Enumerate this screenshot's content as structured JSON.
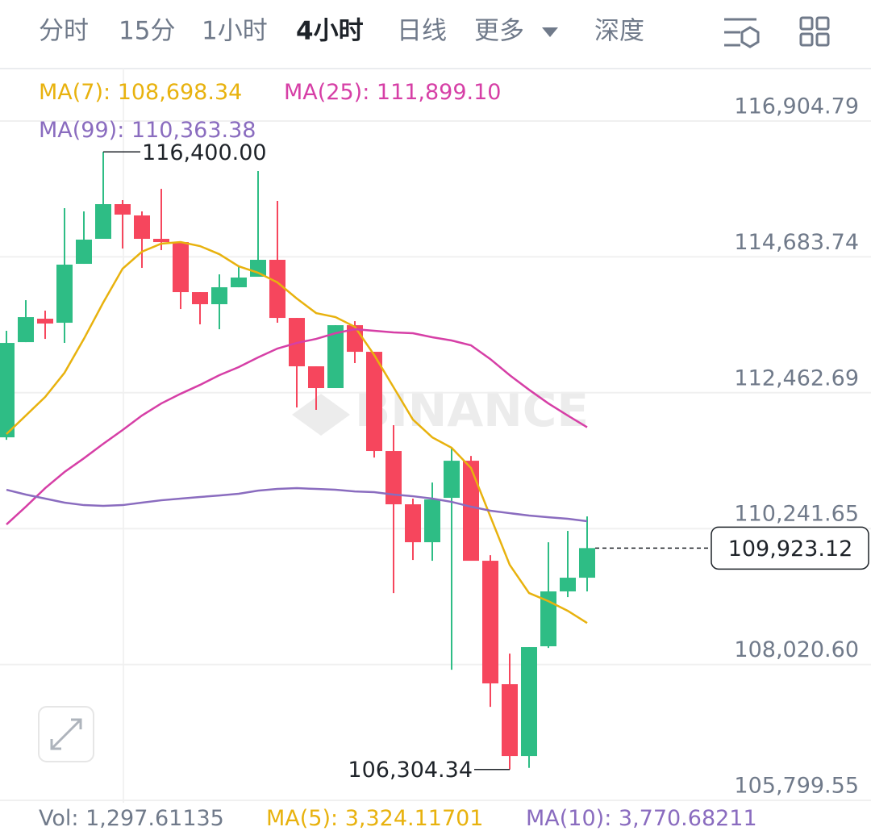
{
  "tabs": {
    "items": [
      "分时",
      "15分",
      "1小时",
      "4小时",
      "日线",
      "更多",
      "深度"
    ],
    "active": 3
  },
  "chart_data": {
    "type": "candlestick",
    "categories": [
      null,
      null,
      null,
      null,
      null,
      null,
      null,
      null,
      null,
      null,
      null,
      null,
      null,
      null,
      null,
      null,
      null,
      null,
      null,
      null,
      null,
      null,
      null,
      null,
      null,
      null,
      null,
      null,
      null,
      null,
      null
    ],
    "open": [
      111734,
      113290,
      113673,
      113607,
      114570,
      114979,
      115546,
      115361,
      114979,
      114926,
      114108,
      113910,
      114187,
      114359,
      114636,
      113686,
      112895,
      112539,
      113567,
      113132,
      111510,
      110639,
      110019,
      110745,
      111351,
      109716,
      107698,
      106524,
      108318,
      109215,
      109439
    ],
    "high": [
      113475,
      113976,
      113805,
      115480,
      115427,
      116400,
      115612,
      115427,
      115796,
      114926,
      114108,
      114398,
      114530,
      116087,
      115599,
      113686,
      112895,
      113567,
      113633,
      113132,
      111932,
      110732,
      110995,
      111562,
      111430,
      109808,
      108199,
      108305,
      110019,
      110204,
      110441
    ],
    "low": [
      111694,
      113290,
      113343,
      113277,
      114570,
      114979,
      114820,
      114504,
      114794,
      113831,
      113581,
      113501,
      114187,
      114359,
      113607,
      112222,
      112183,
      112539,
      112948,
      111404,
      109188,
      109729,
      109716,
      107935,
      109716,
      107328,
      106304.34,
      106330,
      108291,
      109122,
      109215
    ],
    "close": [
      113277,
      113699,
      113594,
      114557,
      114966,
      115546,
      115375,
      114979,
      114926,
      114108,
      113910,
      114187,
      114346,
      114636,
      113686,
      112895,
      112539,
      113567,
      113132,
      111510,
      110639,
      110019,
      110718,
      111351,
      109716,
      107711,
      106524,
      108305,
      109215,
      109439,
      109923.12
    ],
    "up_color": "#2ebd85",
    "down_color": "#f6465d",
    "series": [
      {
        "name": "MA(7)",
        "legend_value": "108,698.34",
        "color": "#e8b20e",
        "values": [
          111787,
          112090,
          112394,
          112789,
          113343,
          113937,
          114491,
          114768,
          114900,
          114926,
          114860,
          114728,
          114530,
          114425,
          114266,
          114003,
          113765,
          113699,
          113541,
          113079,
          112552,
          112024,
          111734,
          111563,
          111233,
          110441,
          109650,
          109188,
          109056,
          108898,
          108698.34
        ]
      },
      {
        "name": "MA(25)",
        "legend_value": "111,899.10",
        "color": "#d63fa6",
        "values": [
          110309,
          110600,
          110903,
          111167,
          111391,
          111628,
          111853,
          112090,
          112288,
          112446,
          112591,
          112750,
          112882,
          113040,
          113185,
          113277,
          113343,
          113436,
          113501,
          113475,
          113449,
          113436,
          113370,
          113317,
          113238,
          113013,
          112750,
          112512,
          112288,
          112090,
          111899.1
        ]
      },
      {
        "name": "MA(99)",
        "legend_value": "110,363.38",
        "color": "#8a6cbf",
        "values": [
          110877,
          110798,
          110732,
          110666,
          110626,
          110613,
          110626,
          110666,
          110705,
          110732,
          110758,
          110784,
          110811,
          110863,
          110890,
          110903,
          110890,
          110877,
          110850,
          110837,
          110798,
          110771,
          110732,
          110679,
          110600,
          110534,
          110494,
          110455,
          110428,
          110402,
          110363.38
        ]
      }
    ],
    "legend_separator": ": ",
    "ylim": [
      105760,
      117762
    ],
    "yticks": [
      {
        "value": 116904.79,
        "label": "116,904.79"
      },
      {
        "value": 114683.74,
        "label": "114,683.74"
      },
      {
        "value": 112462.69,
        "label": "112,462.69"
      },
      {
        "value": 110241.65,
        "label": "110,241.65"
      },
      {
        "value": 108020.6,
        "label": "108,020.60"
      },
      {
        "value": 105799.55,
        "label": "105,799.55"
      }
    ],
    "grid": true,
    "annotations": [
      {
        "label": "116,400.00",
        "value": 116400,
        "kind": "high"
      },
      {
        "label": "106,304.34",
        "value": 106304.34,
        "kind": "low"
      }
    ],
    "last_price": {
      "label": "109,923.12",
      "value": 109923.12
    },
    "watermark": "BINANCE"
  },
  "volume_legend": [
    {
      "label": "Vol",
      "value": "1,297.61135",
      "color": "#707a8a"
    },
    {
      "label": "MA(5)",
      "value": "3,324.11701",
      "color": "#e8b20e"
    },
    {
      "label": "MA(10)",
      "value": "3,770.68211",
      "color": "#8a6cbf"
    }
  ]
}
